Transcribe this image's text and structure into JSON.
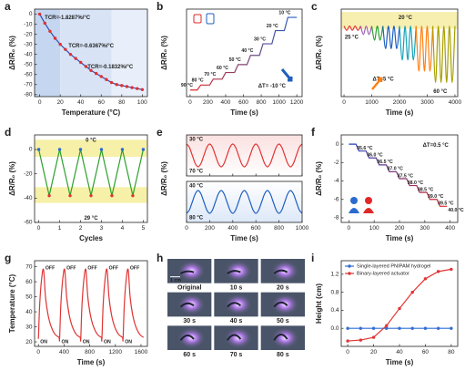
{
  "chart_data": [
    {
      "label": "a",
      "type": "line",
      "xlabel": "Temperature (°C)",
      "ylabel": "ΔR/R₀ (%)",
      "xlim": [
        -5,
        105
      ],
      "ylim": [
        -82,
        5
      ],
      "xticks": [
        0,
        20,
        40,
        60,
        80,
        100
      ],
      "yticks": [
        0,
        -10,
        -20,
        -30,
        -40,
        -50,
        -60,
        -70,
        -80
      ],
      "shaded_regions": [
        {
          "x": [
            -5,
            20
          ],
          "color": "#c5d6f0"
        },
        {
          "x": [
            20,
            70
          ],
          "color": "#d8e4f6"
        },
        {
          "x": [
            70,
            105
          ],
          "color": "#e8effa"
        }
      ],
      "x": [
        0,
        5,
        10,
        15,
        20,
        25,
        30,
        35,
        40,
        45,
        50,
        55,
        60,
        65,
        70,
        75,
        80,
        85,
        90,
        95,
        100
      ],
      "series": [
        {
          "color": "#2f4fb8",
          "marker_color": "#e03030",
          "values": [
            0,
            -9,
            -17,
            -24,
            -30,
            -35,
            -40,
            -44,
            -48,
            -52,
            -56,
            -59,
            -62,
            -65,
            -68,
            -70,
            -71,
            -72,
            -73,
            -74,
            -75
          ]
        }
      ],
      "annotations": [
        {
          "text": "TCR=-1.8287%/°C",
          "color": "#222"
        },
        {
          "text": "TCR=-0.6367%/°C",
          "color": "#222"
        },
        {
          "text": "TCR=-0.1832%/°C",
          "color": "#222"
        }
      ]
    },
    {
      "label": "b",
      "type": "line",
      "xlabel": "Time (s)",
      "ylabel": "ΔR/R₀ (%)",
      "xlim": [
        -40,
        1260
      ],
      "ylim": [
        -15,
        250
      ],
      "xticks": [
        0,
        200,
        400,
        600,
        800,
        1000,
        1200
      ],
      "x": [
        0,
        80,
        120,
        220,
        260,
        360,
        400,
        500,
        540,
        640,
        680,
        780,
        820,
        920,
        960,
        1060,
        1100,
        1200
      ],
      "series": [
        {
          "gradient": [
            "#e02828",
            "#1f5fbf"
          ],
          "values": [
            5,
            5,
            20,
            20,
            38,
            38,
            58,
            58,
            82,
            82,
            110,
            110,
            145,
            145,
            185,
            185,
            225,
            225
          ]
        }
      ],
      "annotations": [
        {
          "text": "90 °C",
          "color": "#222"
        },
        {
          "text": "80 °C",
          "color": "#222"
        },
        {
          "text": "70 °C",
          "color": "#222"
        },
        {
          "text": "60 °C",
          "color": "#222"
        },
        {
          "text": "50 °C",
          "color": "#222"
        },
        {
          "text": "40 °C",
          "color": "#222"
        },
        {
          "text": "30 °C",
          "color": "#222"
        },
        {
          "text": "20 °C",
          "color": "#222"
        },
        {
          "text": "10 °C",
          "color": "#222"
        },
        {
          "text": "ΔT= -10 °C",
          "color": "#1f5fbf"
        }
      ]
    },
    {
      "label": "c",
      "type": "line",
      "smooth": true,
      "xlabel": "Time (s)",
      "ylabel": "ΔR/R₀ (%)",
      "xlim": [
        -100,
        4100
      ],
      "ylim": [
        -50,
        12
      ],
      "xticks": [
        0,
        1000,
        2000,
        3000,
        4000
      ],
      "shaded_regions": [
        {
          "y": [
            -2,
            10
          ],
          "color": "#f7efb0"
        }
      ],
      "series": [
        {
          "color": "#e03838",
          "x": [
            0,
            100,
            200,
            300,
            400,
            500,
            600
          ],
          "values": [
            0,
            -3,
            0,
            -3,
            0,
            -3,
            0
          ]
        },
        {
          "color": "#9b59b6",
          "x": [
            600,
            700,
            800,
            900,
            1000
          ],
          "values": [
            0,
            -6,
            0,
            -6,
            0
          ]
        },
        {
          "color": "#2ca02c",
          "x": [
            1000,
            1100,
            1200,
            1300,
            1400
          ],
          "values": [
            0,
            -10,
            0,
            -10,
            0
          ]
        },
        {
          "color": "#1f5fbf",
          "x": [
            1400,
            1500,
            1600,
            1700,
            1800,
            1900,
            2000
          ],
          "values": [
            0,
            -16,
            0,
            -16,
            0,
            -16,
            0
          ]
        },
        {
          "color": "#17a2b8",
          "x": [
            2000,
            2100,
            2200,
            2300,
            2400,
            2500,
            2600
          ],
          "values": [
            0,
            -24,
            0,
            -24,
            0,
            -24,
            0
          ]
        },
        {
          "color": "#ff7f0e",
          "x": [
            2600,
            2700,
            2800,
            2900,
            3000,
            3100,
            3200
          ],
          "values": [
            0,
            -32,
            0,
            -32,
            0,
            -32,
            0
          ]
        },
        {
          "color": "#a8a000",
          "x": [
            3200,
            3300,
            3400,
            3500,
            3600,
            3700,
            3800,
            3900,
            4000
          ],
          "values": [
            0,
            -40,
            0,
            -40,
            0,
            -40,
            0,
            -40,
            0
          ]
        }
      ],
      "annotations": [
        {
          "text": "25 °C",
          "color": "#e03838"
        },
        {
          "text": "20 °C",
          "color": "#222"
        },
        {
          "text": "ΔT=5 °C",
          "color": "#ff7f0e"
        },
        {
          "text": "60 °C",
          "color": "#8a8400"
        }
      ]
    },
    {
      "label": "d",
      "type": "line",
      "xlabel": "Cycles",
      "ylabel": "ΔR/R₀ (%)",
      "xlim": [
        -0.2,
        5.2
      ],
      "ylim": [
        -60,
        12
      ],
      "xticks": [
        0,
        1,
        2,
        3,
        4,
        5
      ],
      "yticks": [
        0,
        -20,
        -40,
        -60
      ],
      "shaded_regions": [
        {
          "y": [
            -6,
            8
          ],
          "color": "#f6f0a8"
        },
        {
          "y": [
            -44,
            -31
          ],
          "color": "#f6f0a8"
        }
      ],
      "x": [
        0,
        0.5,
        1,
        1.5,
        2,
        2.5,
        3,
        3.5,
        4,
        4.5,
        5
      ],
      "series": [
        {
          "color": "#2ca02c",
          "marker_colors": [
            "#2a6bd0",
            "#e03535"
          ],
          "values": [
            0,
            -38,
            0,
            -38,
            0,
            -38,
            0,
            -38,
            0,
            -38,
            0
          ]
        }
      ],
      "annotations": [
        {
          "text": "0 °C",
          "color": "#2a6bd0"
        },
        {
          "text": "29 °C",
          "color": "#e03535"
        }
      ]
    },
    {
      "label": "e",
      "type": "stacked-line",
      "smooth": true,
      "xlabel": "Time (s)",
      "ylabel": "ΔR/R₀ (%)",
      "xlim": [
        0,
        1000
      ],
      "xticks": [
        0,
        200,
        400,
        600,
        800,
        1000
      ],
      "x": [
        0,
        25,
        50,
        75,
        100,
        125,
        150,
        175,
        200,
        225,
        250,
        275,
        300,
        325,
        350,
        375,
        400,
        425,
        450,
        475,
        500,
        525,
        550,
        575,
        600,
        625,
        650,
        675,
        700,
        725,
        750,
        775,
        800,
        825,
        850,
        875,
        900,
        925,
        950,
        975,
        1000
      ],
      "subplots": [
        {
          "ylim": [
            -1.4,
            0.4
          ],
          "shade_color": "#fbe0e0",
          "series": [
            {
              "color": "#e03535",
              "values": [
                0,
                -0.15,
                -0.5,
                -0.85,
                -1,
                -0.85,
                -0.5,
                -0.15,
                0,
                -0.15,
                -0.5,
                -0.85,
                -1,
                -0.85,
                -0.5,
                -0.15,
                0,
                -0.15,
                -0.5,
                -0.85,
                -1,
                -0.85,
                -0.5,
                -0.15,
                0,
                -0.15,
                -0.5,
                -0.85,
                -1,
                -0.85,
                -0.5,
                -0.15,
                0,
                -0.15,
                -0.5,
                -0.85,
                -1,
                -0.85,
                -0.5,
                -0.15,
                0
              ]
            }
          ],
          "annotations": [
            {
              "text": "30 °C",
              "color": "#1f5fbf"
            },
            {
              "text": "70 °C",
              "color": "#e03535"
            }
          ]
        },
        {
          "ylim": [
            -1.4,
            0.4
          ],
          "shade_color": "#dde8f8",
          "series": [
            {
              "color": "#1f5fbf",
              "values": [
                -1,
                -0.85,
                -0.5,
                -0.15,
                0,
                -0.15,
                -0.5,
                -0.85,
                -1,
                -0.85,
                -0.5,
                -0.15,
                0,
                -0.15,
                -0.5,
                -0.85,
                -1,
                -0.85,
                -0.5,
                -0.15,
                0,
                -0.15,
                -0.5,
                -0.85,
                -1,
                -0.85,
                -0.5,
                -0.15,
                0,
                -0.15,
                -0.5,
                -0.85,
                -1,
                -0.85,
                -0.5,
                -0.15,
                0,
                -0.15,
                -0.5,
                -0.85,
                -1
              ]
            }
          ],
          "annotations": [
            {
              "text": "40 °C",
              "color": "#1f5fbf"
            },
            {
              "text": "80 °C",
              "color": "#e03535"
            }
          ]
        }
      ]
    },
    {
      "label": "f",
      "type": "line",
      "xlabel": "Time (s)",
      "ylabel": "ΔR/R₀ (%)",
      "xlim": [
        -30,
        430
      ],
      "ylim": [
        -8.5,
        1
      ],
      "xticks": [
        0,
        100,
        200,
        300,
        400
      ],
      "yticks": [
        0,
        -2,
        -4,
        -6,
        -8
      ],
      "x": [
        0,
        28,
        40,
        68,
        80,
        108,
        120,
        148,
        160,
        188,
        200,
        228,
        240,
        268,
        280,
        308,
        320,
        348,
        360,
        388
      ],
      "series": [
        {
          "gradient": [
            "#1f3fbf",
            "#e02828"
          ],
          "values": [
            0,
            0,
            -0.75,
            -0.75,
            -1.5,
            -1.5,
            -2.25,
            -2.25,
            -3,
            -3,
            -3.75,
            -3.75,
            -4.5,
            -4.5,
            -5.25,
            -5.25,
            -6,
            -6,
            -6.75,
            -6.75
          ]
        }
      ],
      "annotations": [
        {
          "text": "35.6 °C",
          "color": "#222"
        },
        {
          "text": "36.0 °C",
          "color": "#222"
        },
        {
          "text": "36.5 °C",
          "color": "#222"
        },
        {
          "text": "37.0 °C",
          "color": "#222"
        },
        {
          "text": "37.5 °C",
          "color": "#222"
        },
        {
          "text": "38.0 °C",
          "color": "#222"
        },
        {
          "text": "38.5 °C",
          "color": "#222"
        },
        {
          "text": "39.0 °C",
          "color": "#222"
        },
        {
          "text": "39.5 °C",
          "color": "#222"
        },
        {
          "text": "40.0 °C",
          "color": "#222"
        },
        {
          "text": "ΔT=0.5 °C",
          "color": "#e02828"
        }
      ]
    },
    {
      "label": "g",
      "type": "line",
      "smooth": true,
      "xlabel": "Time (s)",
      "ylabel": "Temperature (°C)",
      "xlim": [
        -60,
        1700
      ],
      "ylim": [
        17,
        74
      ],
      "xticks": [
        0,
        400,
        800,
        1200,
        1600
      ],
      "yticks": [
        20,
        30,
        40,
        50,
        60,
        70
      ],
      "x": [
        0,
        20,
        50,
        80,
        110,
        150,
        200,
        260,
        320,
        330,
        350,
        380,
        410,
        440,
        480,
        530,
        590,
        650,
        660,
        680,
        710,
        740,
        770,
        810,
        860,
        920,
        980,
        990,
        1010,
        1040,
        1070,
        1100,
        1140,
        1190,
        1250,
        1310,
        1320,
        1340,
        1370,
        1400,
        1430,
        1470,
        1520,
        1580,
        1640
      ],
      "series": [
        {
          "color": "#e03535",
          "values": [
            22,
            45,
            62,
            68,
            50,
            38,
            30,
            25,
            23,
            22,
            45,
            62,
            68,
            50,
            38,
            30,
            25,
            23,
            22,
            45,
            62,
            68,
            50,
            38,
            30,
            25,
            23,
            22,
            45,
            62,
            68,
            50,
            38,
            30,
            25,
            23,
            22,
            45,
            62,
            68,
            50,
            38,
            30,
            25,
            23
          ]
        }
      ],
      "annotations": [
        {
          "text": "OFF",
          "color": "#222"
        },
        {
          "text": "OFF",
          "color": "#222"
        },
        {
          "text": "OFF",
          "color": "#222"
        },
        {
          "text": "OFF",
          "color": "#222"
        },
        {
          "text": "OFF",
          "color": "#222"
        },
        {
          "text": "ON",
          "color": "#222"
        },
        {
          "text": "ON",
          "color": "#222"
        },
        {
          "text": "ON",
          "color": "#222"
        },
        {
          "text": "ON",
          "color": "#222"
        },
        {
          "text": "ON",
          "color": "#222"
        }
      ]
    },
    {
      "label": "h",
      "type": "image-grid",
      "scale_bar": "1 cm",
      "frames": [
        "Original",
        "10 s",
        "20 s",
        "30 s",
        "40 s",
        "50 s",
        "60 s",
        "70 s",
        "80 s"
      ]
    },
    {
      "label": "i",
      "type": "line",
      "xlabel": "Time (s)",
      "ylabel": "Height (cm)",
      "legend": "top-left",
      "xlim": [
        -5,
        85
      ],
      "ylim": [
        -0.4,
        1.5
      ],
      "xticks": [
        0,
        20,
        40,
        60,
        80
      ],
      "yticks": [
        {
          "value": 0,
          "label": "0.0"
        },
        0.4,
        0.8,
        1.2
      ],
      "x": [
        0,
        10,
        20,
        30,
        40,
        50,
        60,
        70,
        80
      ],
      "series": [
        {
          "name": "Single-layered PNIPAM hydrogel",
          "color": "#2f6fd6",
          "marker_color": "#2f6fd6",
          "values": [
            0,
            0,
            0,
            0,
            0,
            0,
            0,
            0,
            0
          ]
        },
        {
          "name": "Binary-layered actuator",
          "color": "#e03535",
          "marker_color": "#e03535",
          "values": [
            -0.28,
            -0.26,
            -0.2,
            0.06,
            0.44,
            0.8,
            1.1,
            1.26,
            1.31
          ]
        }
      ]
    }
  ]
}
